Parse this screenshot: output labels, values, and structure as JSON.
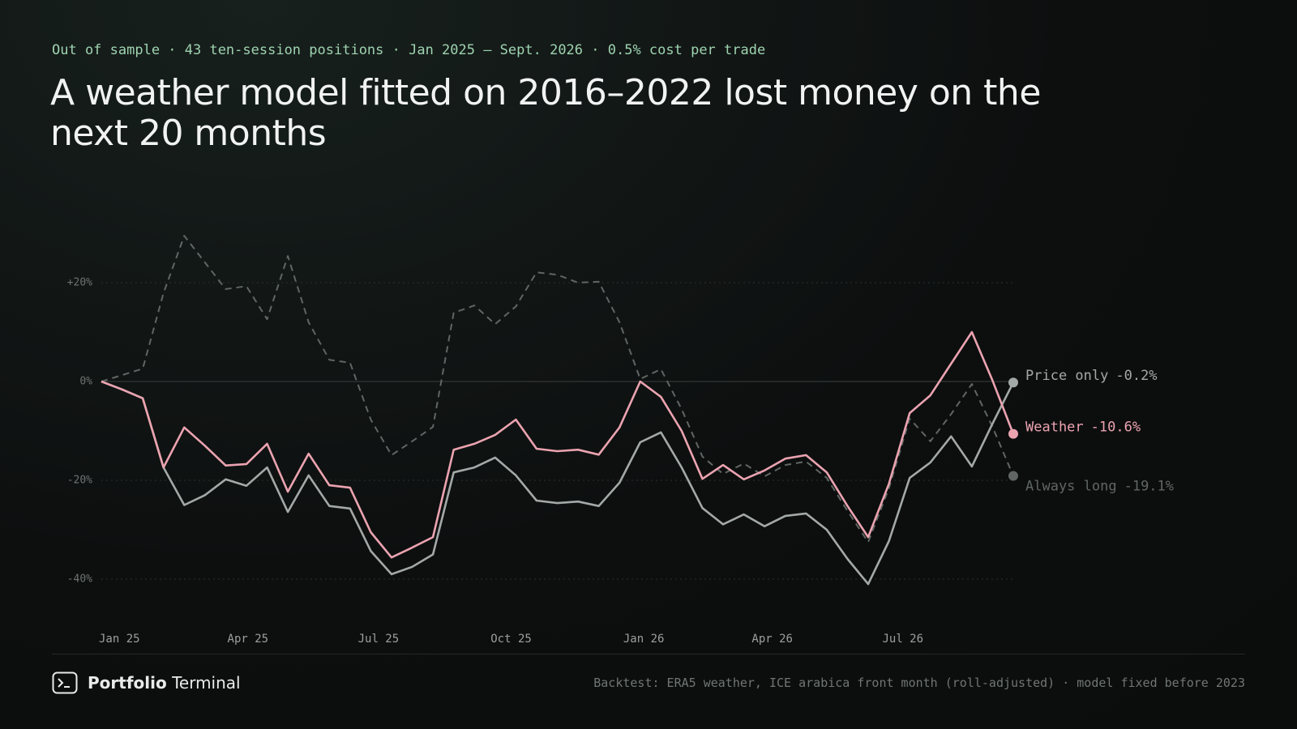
{
  "header": {
    "kicker": "Out of sample · 43 ten-session positions · Jan 2025 – Sept. 2026 · 0.5% cost per trade",
    "title": "A weather model fitted on 2016–2022 lost money on the next 20 months"
  },
  "chart_data": {
    "type": "line",
    "x": [
      0,
      1,
      2,
      3,
      4,
      5,
      6,
      7,
      8,
      9,
      10,
      11,
      12,
      13,
      14,
      15,
      16,
      17,
      18,
      19,
      20,
      21,
      22,
      23,
      24,
      25,
      26,
      27,
      28,
      29,
      30,
      31,
      32,
      33,
      34,
      35,
      36,
      37,
      38,
      39,
      40,
      41,
      42,
      43,
      44
    ],
    "xlim": [
      0,
      44
    ],
    "xticks": [
      {
        "value": 0,
        "label": "Jan 25"
      },
      {
        "value": 6.2,
        "label": "Apr 25"
      },
      {
        "value": 12.5,
        "label": "Jul 25"
      },
      {
        "value": 18.9,
        "label": "Oct 25"
      },
      {
        "value": 25.3,
        "label": "Jan 26"
      },
      {
        "value": 31.5,
        "label": "Apr 26"
      },
      {
        "value": 37.8,
        "label": "Jul 26"
      }
    ],
    "ylim": [
      -45,
      32
    ],
    "yticks": [
      {
        "value": 20,
        "label": "+20%"
      },
      {
        "value": 0,
        "label": "0%"
      },
      {
        "value": -20,
        "label": "-20%"
      },
      {
        "value": -40,
        "label": "-40%"
      }
    ],
    "grid": true,
    "series": [
      {
        "name": "Always long",
        "color": "#5f6663",
        "style": "dashed",
        "values": [
          0,
          1.3,
          2.6,
          17.9,
          29.5,
          24.1,
          18.7,
          19.3,
          12.6,
          25.4,
          12,
          4.4,
          3.8,
          -7.7,
          -14.9,
          -12.1,
          -9.2,
          13.9,
          15.4,
          11.6,
          15.2,
          22.1,
          21.6,
          20,
          20.2,
          12,
          0.5,
          2.5,
          -5.6,
          -15.2,
          -18.7,
          -16.6,
          -19.2,
          -16.9,
          -16.2,
          -19.5,
          -26.2,
          -32.5,
          -21.6,
          -7.5,
          -12.1,
          -6.6,
          -0.5,
          -9.2,
          -19.1
        ],
        "value_labels": [
          null,
          null,
          null,
          null,
          null,
          null,
          null,
          null,
          null,
          null,
          null,
          null,
          null,
          null,
          null,
          null,
          null,
          null,
          null,
          null,
          null,
          null,
          null,
          null,
          null,
          null,
          null,
          null,
          null,
          null,
          null,
          null,
          null,
          null,
          null,
          null,
          null,
          null,
          null,
          null,
          null,
          null,
          null,
          null,
          "-19.1%"
        ]
      },
      {
        "name": "Price only",
        "color": "#a3a9a6",
        "style": "solid",
        "values": [
          0,
          -1.6,
          -3.4,
          -17.4,
          -25,
          -23,
          -19.8,
          -21.1,
          -17.4,
          -26.4,
          -19,
          -25.2,
          -25.7,
          -34.3,
          -39,
          -37.5,
          -35,
          -18.4,
          -17.4,
          -15.4,
          -19,
          -24.1,
          -24.6,
          -24.3,
          -25.2,
          -20.5,
          -12.3,
          -10.3,
          -17.4,
          -25.6,
          -28.9,
          -26.9,
          -29.3,
          -27.2,
          -26.7,
          -30,
          -35.9,
          -41,
          -32.3,
          -19.5,
          -16.4,
          -11.1,
          -17.2,
          -8.5,
          -0.2
        ],
        "value_labels": [
          null,
          null,
          null,
          null,
          null,
          null,
          null,
          null,
          null,
          null,
          null,
          null,
          null,
          null,
          null,
          null,
          null,
          null,
          null,
          null,
          null,
          null,
          null,
          null,
          null,
          null,
          null,
          null,
          null,
          null,
          null,
          null,
          null,
          null,
          null,
          null,
          null,
          null,
          null,
          null,
          null,
          null,
          null,
          null,
          "-0.2%"
        ]
      },
      {
        "name": "Weather",
        "color": "#eba3b0",
        "style": "solid",
        "values": [
          0,
          -1.6,
          -3.4,
          -17.4,
          -9.3,
          -13,
          -17,
          -16.7,
          -12.6,
          -22.3,
          -14.6,
          -21,
          -21.5,
          -30.5,
          -35.6,
          -33.6,
          -31.5,
          -13.8,
          -12.6,
          -10.8,
          -7.7,
          -13.6,
          -14.1,
          -13.8,
          -14.8,
          -9.3,
          0,
          -3.1,
          -10,
          -19.7,
          -16.9,
          -19.8,
          -18,
          -15.6,
          -14.9,
          -18.4,
          -25.2,
          -31.5,
          -20.7,
          -6.4,
          -2.8,
          3.6,
          10,
          0.2,
          -10.6
        ],
        "value_labels": [
          null,
          null,
          null,
          null,
          null,
          null,
          null,
          null,
          null,
          null,
          null,
          null,
          null,
          null,
          null,
          null,
          null,
          null,
          null,
          null,
          null,
          null,
          null,
          null,
          null,
          null,
          null,
          null,
          null,
          null,
          null,
          null,
          null,
          null,
          null,
          null,
          null,
          null,
          null,
          null,
          null,
          null,
          null,
          null,
          "-10.6%"
        ]
      }
    ]
  },
  "footer": {
    "brand_bold": "Portfolio",
    "brand": "Terminal",
    "note": "Backtest: ERA5 weather, ICE arabica front month (roll-adjusted) · model fixed before 2023"
  }
}
